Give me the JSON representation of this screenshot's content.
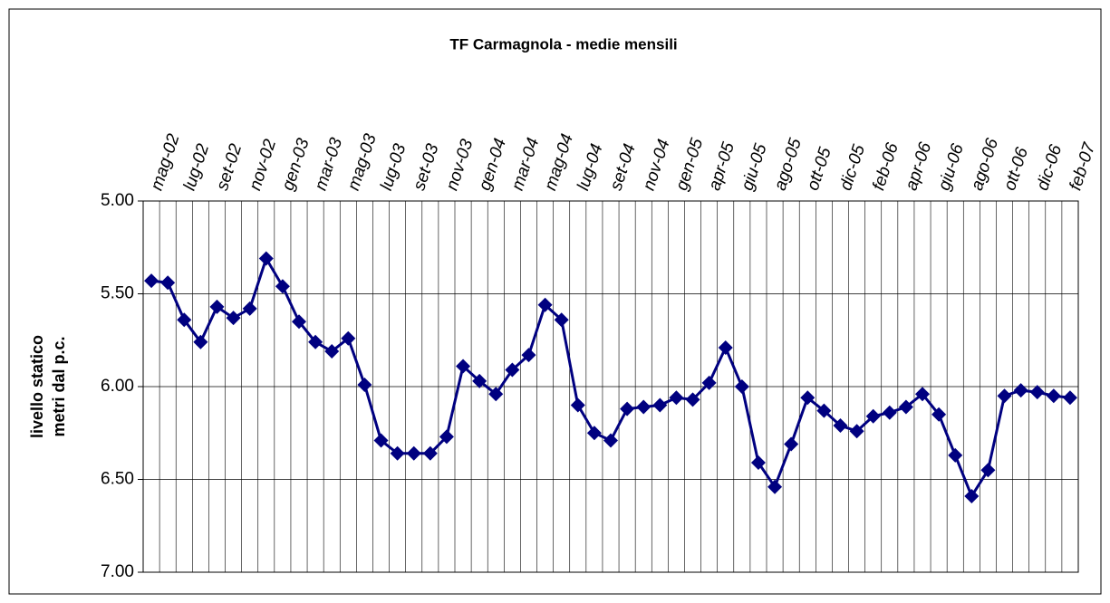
{
  "chart_data": {
    "type": "line",
    "title": "TF Carmagnola - medie mensili",
    "y_label": [
      "livello statico",
      "metri dal p.c."
    ],
    "categories": [
      "mag-02",
      null,
      "lug-02",
      null,
      "set-02",
      null,
      "nov-02",
      null,
      "gen-03",
      null,
      "mar-03",
      null,
      "mag-03",
      null,
      "lug-03",
      null,
      "set-03",
      null,
      "nov-03",
      null,
      "gen-04",
      null,
      "mar-04",
      null,
      "mag-04",
      null,
      "lug-04",
      null,
      "set-04",
      null,
      "nov-04",
      null,
      "gen-05",
      null,
      "apr-05",
      null,
      "giu-05",
      null,
      "ago-05",
      null,
      "ott-05",
      null,
      "dic-05",
      null,
      "feb-06",
      null,
      "apr-06",
      null,
      "giu-06",
      null,
      "ago-06",
      null,
      "ott-06",
      null,
      "dic-06",
      null,
      "feb-07"
    ],
    "series": [
      {
        "color": "#000080",
        "values": [
          5.43,
          5.44,
          5.64,
          5.76,
          5.57,
          5.63,
          5.58,
          5.31,
          5.46,
          5.65,
          5.76,
          5.81,
          5.74,
          5.99,
          6.29,
          6.36,
          6.36,
          6.36,
          6.27,
          5.89,
          5.97,
          6.04,
          5.91,
          5.83,
          5.56,
          5.64,
          6.1,
          6.25,
          6.29,
          6.12,
          6.11,
          6.1,
          6.06,
          6.07,
          5.98,
          5.79,
          6.0,
          6.41,
          6.54,
          6.31,
          6.06,
          6.13,
          6.21,
          6.24,
          6.16,
          6.14,
          6.11,
          6.04,
          6.15,
          6.37,
          6.59,
          6.45,
          6.05,
          6.02,
          6.03,
          6.05,
          6.06
        ]
      }
    ],
    "ylim": [
      7,
      5
    ],
    "yticks": [
      {
        "value": 5,
        "label": "5.00"
      },
      {
        "value": 5.5,
        "label": "5.50"
      },
      {
        "value": 6,
        "label": "6.00"
      },
      {
        "value": 6.5,
        "label": "6.50"
      },
      {
        "value": 7,
        "label": "7.00"
      }
    ],
    "grid": true
  }
}
